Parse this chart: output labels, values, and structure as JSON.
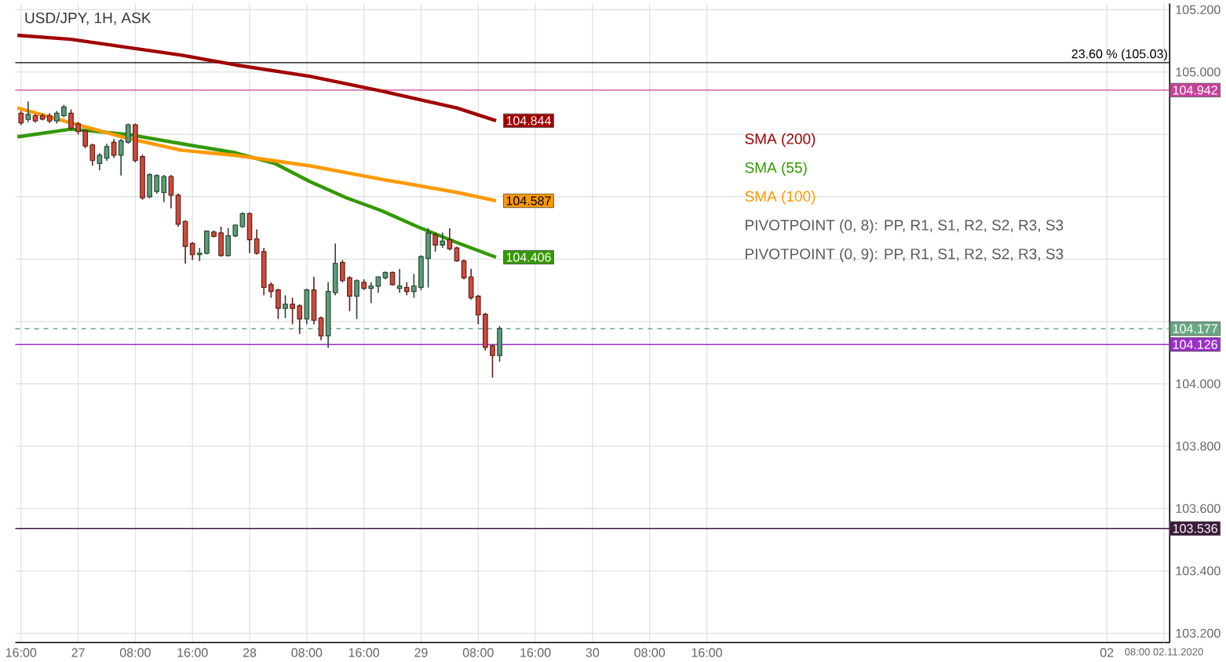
{
  "chart_data": {
    "type": "candlestick",
    "title": "USD/JPY, 1H, ASK",
    "x": [
      "2020-10-26T16:00",
      "2020-10-26T17:00",
      "2020-10-26T18:00",
      "2020-10-26T19:00",
      "2020-10-26T20:00",
      "2020-10-26T21:00",
      "2020-10-26T22:00",
      "2020-10-26T23:00",
      "2020-10-27T00:00",
      "2020-10-27T01:00",
      "2020-10-27T02:00",
      "2020-10-27T03:00",
      "2020-10-27T04:00",
      "2020-10-27T05:00",
      "2020-10-27T06:00",
      "2020-10-27T07:00",
      "2020-10-27T08:00",
      "2020-10-27T09:00",
      "2020-10-27T10:00",
      "2020-10-27T11:00",
      "2020-10-27T12:00",
      "2020-10-27T13:00",
      "2020-10-27T14:00",
      "2020-10-27T15:00",
      "2020-10-27T16:00",
      "2020-10-27T17:00",
      "2020-10-27T18:00",
      "2020-10-27T19:00",
      "2020-10-27T20:00",
      "2020-10-27T21:00",
      "2020-10-27T22:00",
      "2020-10-27T23:00",
      "2020-10-28T00:00",
      "2020-10-28T01:00",
      "2020-10-28T02:00",
      "2020-10-28T03:00",
      "2020-10-28T04:00",
      "2020-10-28T05:00",
      "2020-10-28T06:00",
      "2020-10-28T07:00",
      "2020-10-28T08:00",
      "2020-10-28T09:00",
      "2020-10-28T10:00",
      "2020-10-28T11:00",
      "2020-10-28T12:00",
      "2020-10-28T13:00",
      "2020-10-28T14:00",
      "2020-10-28T15:00",
      "2020-10-28T16:00",
      "2020-10-28T17:00",
      "2020-10-28T18:00",
      "2020-10-28T19:00",
      "2020-10-28T20:00",
      "2020-10-28T21:00",
      "2020-10-28T22:00",
      "2020-10-28T23:00",
      "2020-10-29T00:00",
      "2020-10-29T01:00",
      "2020-10-29T02:00",
      "2020-10-29T03:00",
      "2020-10-29T04:00",
      "2020-10-29T05:00",
      "2020-10-29T06:00",
      "2020-10-29T07:00",
      "2020-10-29T08:00",
      "2020-10-29T09:00",
      "2020-10-29T10:00",
      "2020-10-29T11:00"
    ],
    "ohlc": [
      [
        104.868,
        104.875,
        104.83,
        104.837
      ],
      [
        104.848,
        104.905,
        104.84,
        104.864
      ],
      [
        104.86,
        104.865,
        104.838,
        104.843
      ],
      [
        104.86,
        104.866,
        104.845,
        104.849
      ],
      [
        104.86,
        104.868,
        104.836,
        104.843
      ],
      [
        104.843,
        104.875,
        104.835,
        104.868
      ],
      [
        104.86,
        104.895,
        104.855,
        104.888
      ],
      [
        104.868,
        104.88,
        104.815,
        104.82
      ],
      [
        104.834,
        104.84,
        104.8,
        104.809
      ],
      [
        104.812,
        104.815,
        104.755,
        104.763
      ],
      [
        104.766,
        104.77,
        104.7,
        104.716
      ],
      [
        104.707,
        104.74,
        104.685,
        104.733
      ],
      [
        104.724,
        104.77,
        104.715,
        104.761
      ],
      [
        104.775,
        104.785,
        104.725,
        104.733
      ],
      [
        104.733,
        104.785,
        104.668,
        104.78
      ],
      [
        104.775,
        104.835,
        104.77,
        104.831
      ],
      [
        104.831,
        104.835,
        104.71,
        104.716
      ],
      [
        104.729,
        104.735,
        104.59,
        104.597
      ],
      [
        104.6,
        104.675,
        104.595,
        104.671
      ],
      [
        104.617,
        104.672,
        104.61,
        104.668
      ],
      [
        104.614,
        104.67,
        104.583,
        104.665
      ],
      [
        104.665,
        104.67,
        104.563,
        104.605
      ],
      [
        104.605,
        104.61,
        104.504,
        104.512
      ],
      [
        104.521,
        104.525,
        104.386,
        104.441
      ],
      [
        104.45,
        104.455,
        104.397,
        104.414
      ],
      [
        104.414,
        104.436,
        104.394,
        104.419
      ],
      [
        104.419,
        104.492,
        104.415,
        104.49
      ],
      [
        104.487,
        104.492,
        104.47,
        104.473
      ],
      [
        104.484,
        104.504,
        104.408,
        104.411
      ],
      [
        104.411,
        104.499,
        104.408,
        104.475
      ],
      [
        104.475,
        104.512,
        104.47,
        104.509
      ],
      [
        104.504,
        104.55,
        104.5,
        104.546
      ],
      [
        104.546,
        104.55,
        104.419,
        104.462
      ],
      [
        104.465,
        104.495,
        104.414,
        104.419
      ],
      [
        104.424,
        104.436,
        104.284,
        104.309
      ],
      [
        104.318,
        104.326,
        104.276,
        104.296
      ],
      [
        104.301,
        104.305,
        104.208,
        104.242
      ],
      [
        104.242,
        104.284,
        104.211,
        104.255
      ],
      [
        104.255,
        104.276,
        104.191,
        104.242
      ],
      [
        104.25,
        104.255,
        104.16,
        104.208
      ],
      [
        104.208,
        104.305,
        104.191,
        104.301
      ],
      [
        104.301,
        104.343,
        104.191,
        104.204
      ],
      [
        104.211,
        104.216,
        104.14,
        104.154
      ],
      [
        104.154,
        104.326,
        104.115,
        104.296
      ],
      [
        104.292,
        104.45,
        104.284,
        104.386
      ],
      [
        104.389,
        104.397,
        104.325,
        104.331
      ],
      [
        104.34,
        104.345,
        104.233,
        104.281
      ],
      [
        104.281,
        104.335,
        104.208,
        104.331
      ],
      [
        104.326,
        104.335,
        104.301,
        104.306
      ],
      [
        104.306,
        104.326,
        104.259,
        104.314
      ],
      [
        104.313,
        104.345,
        104.292,
        104.343
      ],
      [
        104.34,
        104.36,
        104.335,
        104.357
      ],
      [
        104.357,
        104.36,
        104.315,
        104.318
      ],
      [
        104.306,
        104.369,
        104.292,
        104.314
      ],
      [
        104.309,
        104.326,
        104.284,
        104.296
      ],
      [
        104.296,
        104.352,
        104.276,
        104.314
      ],
      [
        104.309,
        104.412,
        104.3,
        104.408
      ],
      [
        104.402,
        104.499,
        104.309,
        104.484
      ],
      [
        104.478,
        104.485,
        104.424,
        104.445
      ],
      [
        104.445,
        104.485,
        104.436,
        104.458
      ],
      [
        104.462,
        104.499,
        104.428,
        104.433
      ],
      [
        104.436,
        104.44,
        104.392,
        104.394
      ],
      [
        104.394,
        104.399,
        104.335,
        104.34
      ],
      [
        104.343,
        104.369,
        104.27,
        104.276
      ],
      [
        104.281,
        104.285,
        104.191,
        104.221
      ],
      [
        104.223,
        104.228,
        104.107,
        104.117
      ],
      [
        104.122,
        104.126,
        104.02,
        104.091
      ],
      [
        104.091,
        104.185,
        104.071,
        104.177
      ]
    ],
    "colors": [
      "#d04a3a",
      "#5a9e78",
      "#d04a3a",
      "#d04a3a",
      "#d04a3a",
      "#5a9e78",
      "#5a9e78",
      "#d04a3a",
      "#d04a3a",
      "#d04a3a",
      "#d04a3a",
      "#5a9e78",
      "#5a9e78",
      "#d04a3a",
      "#5a9e78",
      "#5a9e78",
      "#d04a3a",
      "#d04a3a",
      "#5a9e78",
      "#5a9e78",
      "#5a9e78",
      "#d04a3a",
      "#d04a3a",
      "#d04a3a",
      "#d04a3a",
      "#5a9e78",
      "#5a9e78",
      "#d04a3a",
      "#d04a3a",
      "#5a9e78",
      "#5a9e78",
      "#5a9e78",
      "#d04a3a",
      "#d04a3a",
      "#d04a3a",
      "#d04a3a",
      "#d04a3a",
      "#5a9e78",
      "#d04a3a",
      "#d04a3a",
      "#5a9e78",
      "#d04a3a",
      "#d04a3a",
      "#5a9e78",
      "#5a9e78",
      "#d04a3a",
      "#d04a3a",
      "#5a9e78",
      "#d04a3a",
      "#5a9e78",
      "#5a9e78",
      "#5a9e78",
      "#d04a3a",
      "#5a9e78",
      "#d04a3a",
      "#5a9e78",
      "#5a9e78",
      "#5a9e78",
      "#d04a3a",
      "#5a9e78",
      "#d04a3a",
      "#d04a3a",
      "#d04a3a",
      "#d04a3a",
      "#d04a3a",
      "#d04a3a",
      "#d04a3a",
      "#5a9e78"
    ],
    "series": [
      {
        "name": "SMA (200)",
        "type": "line",
        "color": "#a00000",
        "x": [
          "2020-10-26T15:30",
          "2020-10-26T23:00",
          "2020-10-27T14:30",
          "2020-10-27T22:00",
          "2020-10-28T08:30",
          "2020-10-28T18:30",
          "2020-10-29T05:00",
          "2020-10-29T10:30"
        ],
        "values": [
          105.118,
          105.105,
          105.054,
          105.023,
          104.986,
          104.939,
          104.885,
          104.844
        ],
        "value_labels": [
          null,
          null,
          null,
          null,
          null,
          null,
          null,
          "104.844"
        ]
      },
      {
        "name": "SMA (55)",
        "type": "line",
        "color": "#339900",
        "x": [
          "2020-10-26T15:30",
          "2020-10-26T23:00",
          "2020-10-27T07:00",
          "2020-10-27T14:30",
          "2020-10-27T22:00",
          "2020-10-28T03:30",
          "2020-10-28T08:30",
          "2020-10-28T13:30",
          "2020-10-28T18:30",
          "2020-10-28T23:30",
          "2020-10-29T05:00",
          "2020-10-29T10:30"
        ],
        "values": [
          104.792,
          104.817,
          104.8,
          104.77,
          104.741,
          104.707,
          104.648,
          104.597,
          104.555,
          104.504,
          104.453,
          104.406
        ],
        "value_labels": [
          null,
          null,
          null,
          null,
          null,
          null,
          null,
          null,
          null,
          null,
          null,
          "104.406"
        ]
      },
      {
        "name": "SMA (100)",
        "type": "line",
        "color": "#ff9900",
        "x": [
          "2020-10-26T15:30",
          "2020-10-26T23:00",
          "2020-10-27T07:00",
          "2020-10-27T14:30",
          "2020-10-27T22:00",
          "2020-10-28T08:30",
          "2020-10-28T18:30",
          "2020-10-29T05:00",
          "2020-10-29T10:30"
        ],
        "values": [
          104.885,
          104.837,
          104.787,
          104.749,
          104.733,
          104.699,
          104.656,
          104.614,
          104.587
        ],
        "value_labels": [
          null,
          null,
          null,
          null,
          null,
          null,
          null,
          null,
          "104.587"
        ]
      }
    ],
    "ref_lines": [
      {
        "axis": "y",
        "value": 105.03,
        "label": "23.60 % (105.03)"
      },
      {
        "axis": "y",
        "value": 104.942,
        "label": "104.942",
        "color": "#c8409a"
      },
      {
        "axis": "y",
        "value": 104.177,
        "label": "104.177",
        "color": "#6aa884",
        "line_style": "dashed"
      },
      {
        "axis": "y",
        "value": 104.126,
        "label": "104.126",
        "color": "#9b30c8"
      },
      {
        "axis": "y",
        "value": 103.536,
        "label": "103.536",
        "color": "#3c1a3c"
      }
    ],
    "annotations": [
      "PIVOTPOINT (0, 8): PP, R1, S1, R2, S2, R3, S3",
      "PIVOTPOINT (0, 9): PP, R1, S1, R2, S2, R3, S3"
    ],
    "xlim": [
      "2020-10-26T15:12",
      "2020-11-02T08:48"
    ],
    "xticks": [
      {
        "value": "2020-10-26T16:00",
        "label": "16:00"
      },
      {
        "value": "2020-10-27T00:00",
        "label": "27"
      },
      {
        "value": "2020-10-27T08:00",
        "label": "08:00"
      },
      {
        "value": "2020-10-27T16:00",
        "label": "16:00"
      },
      {
        "value": "2020-10-28T00:00",
        "label": "28"
      },
      {
        "value": "2020-10-28T08:00",
        "label": "08:00"
      },
      {
        "value": "2020-10-28T16:00",
        "label": "16:00"
      },
      {
        "value": "2020-10-29T00:00",
        "label": "29"
      },
      {
        "value": "2020-10-29T08:00",
        "label": "08:00"
      },
      {
        "value": "2020-10-29T16:00",
        "label": "16:00"
      },
      {
        "value": "2020-10-30T00:00",
        "label": "30"
      },
      {
        "value": "2020-10-30T08:00",
        "label": "08:00"
      },
      {
        "value": "2020-10-30T16:00",
        "label": "16:00"
      },
      {
        "value": "2020-11-02T00:00",
        "label": "02"
      },
      {
        "value": "2020-11-02T08:00",
        "label": "08:00 02.11.2020"
      }
    ],
    "ylim": [
      103.17,
      105.22
    ],
    "yticks": [
      {
        "value": 103.2,
        "label": "103.200"
      },
      {
        "value": 103.4,
        "label": "103.400"
      },
      {
        "value": 103.6,
        "label": "103.600"
      },
      {
        "value": 103.8,
        "label": "103.800"
      },
      {
        "value": 104.0,
        "label": "104.000"
      },
      {
        "value": 104.2,
        "label": null
      },
      {
        "value": 104.4,
        "label": null
      },
      {
        "value": 104.6,
        "label": null
      },
      {
        "value": 104.8,
        "label": null
      },
      {
        "value": 105.0,
        "label": "105.000"
      },
      {
        "value": 105.2,
        "label": "105.200"
      }
    ],
    "grid": true,
    "legend": "top right"
  }
}
